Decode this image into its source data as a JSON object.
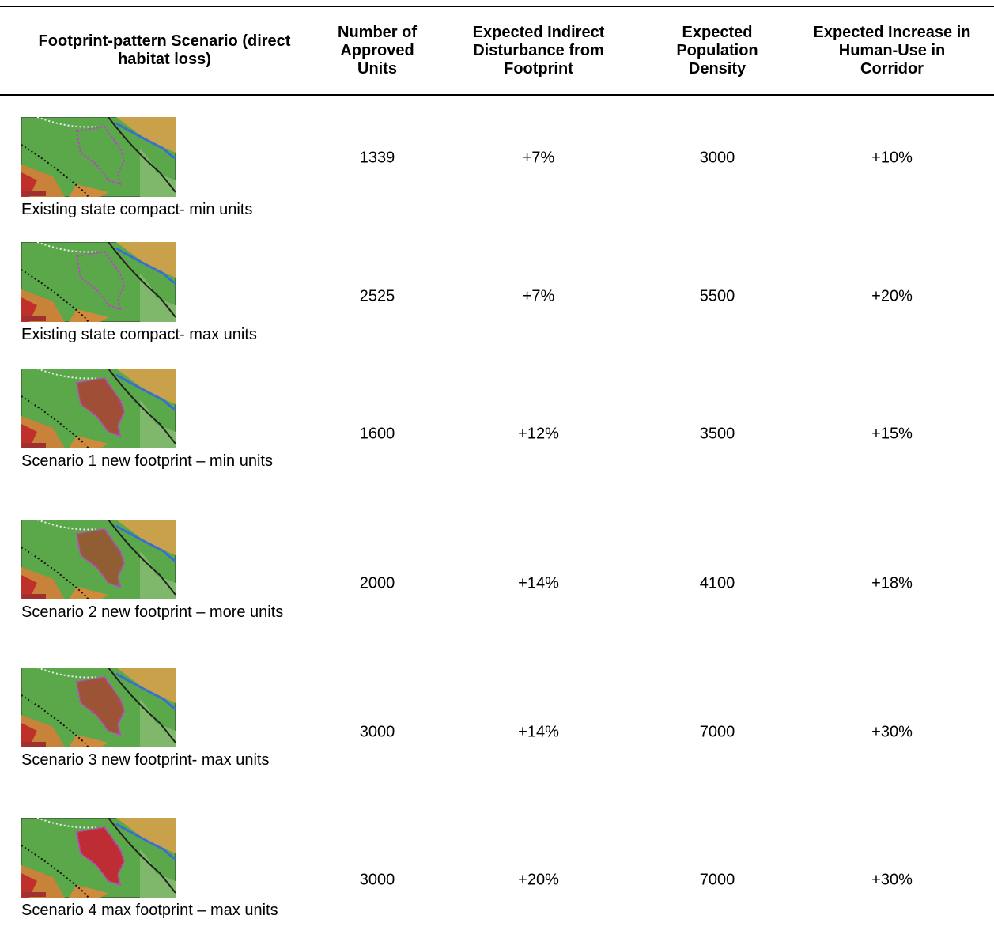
{
  "table": {
    "header": [
      "Footprint-pattern Scenario (direct habitat loss)",
      "Number of Approved Units",
      "Expected Indirect Disturbance from Footprint",
      "Expected Population Density",
      "Expected Increase in Human-Use in Corridor"
    ],
    "rows": [
      [
        "Existing state compact- min units",
        "1339",
        "+7%",
        "3000",
        "+10%"
      ],
      [
        "Existing state compact- max units",
        "2525",
        "+7%",
        "5500",
        "+20%"
      ],
      [
        "Scenario 1 new footprint – min units",
        "1600",
        "+12%",
        "3500",
        "+15%"
      ],
      [
        "Scenario 2 new footprint – more units",
        "2000",
        "+14%",
        "4100",
        "+18%"
      ],
      [
        "Scenario 3 new footprint- max units",
        "3000",
        "+14%",
        "7000",
        "+30%"
      ],
      [
        "Scenario 4 max footprint – max units",
        "3000",
        "+20%",
        "7000",
        "+30%"
      ]
    ]
  }
}
